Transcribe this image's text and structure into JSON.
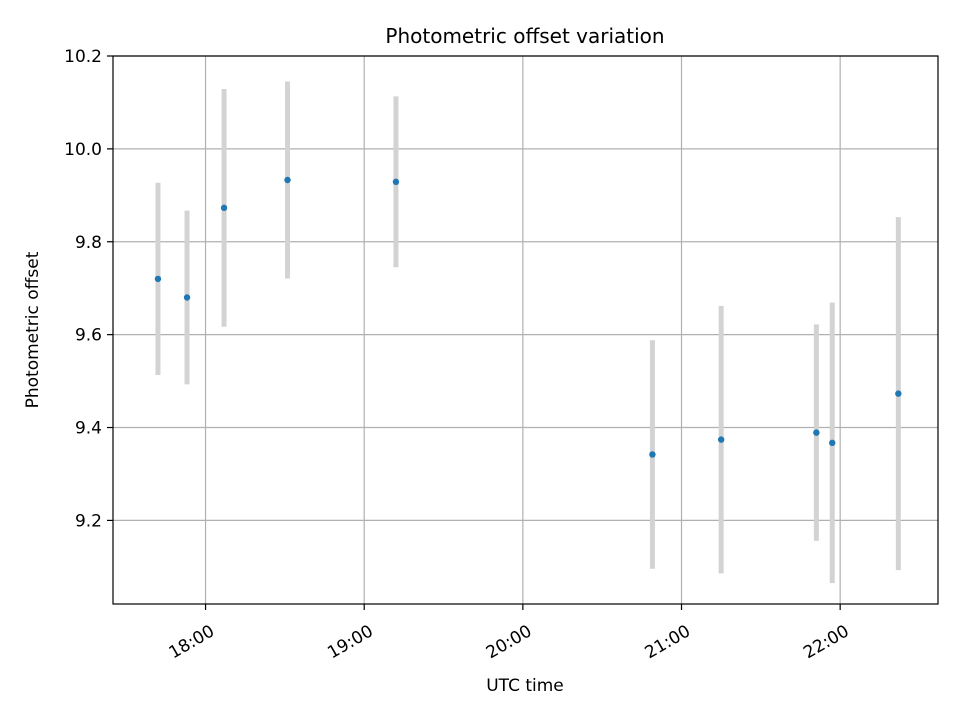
{
  "chart_data": {
    "type": "scatter",
    "title": "Photometric offset variation",
    "xlabel": "UTC time",
    "ylabel": "Photometric offset",
    "x_unit": "UTC time (HH:MM)",
    "xlim": [
      "17:25",
      "22:37"
    ],
    "ylim": [
      9.02,
      10.2
    ],
    "x_ticks": [
      "18:00",
      "19:00",
      "20:00",
      "21:00",
      "22:00"
    ],
    "y_ticks": [
      9.2,
      9.4,
      9.6,
      9.8,
      10.0,
      10.2
    ],
    "y_tick_labels": [
      "9.2",
      "9.4",
      "9.6",
      "9.8",
      "10.0",
      "10.2"
    ],
    "grid": true,
    "legend": "none",
    "colors": {
      "points": "#1f77b4",
      "errorbars": "#d3d3d3"
    },
    "series": [
      {
        "points": [
          {
            "x": "17:42",
            "y": 9.72,
            "yerr": 0.207
          },
          {
            "x": "17:53",
            "y": 9.68,
            "yerr": 0.187
          },
          {
            "x": "18:07",
            "y": 9.873,
            "yerr": 0.256
          },
          {
            "x": "18:31",
            "y": 9.933,
            "yerr": 0.212
          },
          {
            "x": "19:12",
            "y": 9.929,
            "yerr": 0.184
          },
          {
            "x": "20:49",
            "y": 9.342,
            "yerr": 0.246
          },
          {
            "x": "21:15",
            "y": 9.374,
            "yerr": 0.288
          },
          {
            "x": "21:51",
            "y": 9.389,
            "yerr": 0.233
          },
          {
            "x": "21:57",
            "y": 9.367,
            "yerr": 0.302
          },
          {
            "x": "22:22",
            "y": 9.473,
            "yerr": 0.38
          }
        ]
      }
    ]
  }
}
